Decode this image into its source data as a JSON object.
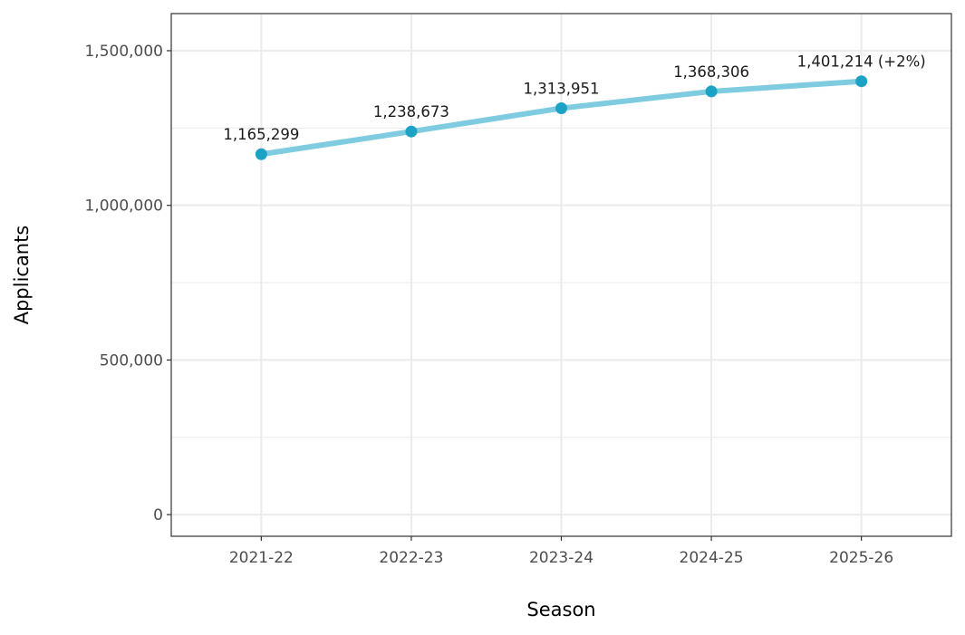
{
  "chart_data": {
    "type": "line",
    "title": "",
    "xlabel": "Season",
    "ylabel": "Applicants",
    "categories": [
      "2021-22",
      "2022-23",
      "2023-24",
      "2024-25",
      "2025-26"
    ],
    "series": [
      {
        "values": [
          1165299,
          1238673,
          1313951,
          1368306,
          1401214
        ],
        "labels": [
          "1,165,299",
          "1,238,673",
          "1,313,951",
          "1,368,306",
          "1,401,214 (+2%)"
        ]
      }
    ],
    "ylim": [
      -70000,
      1620000
    ],
    "yticks": [
      0,
      500000,
      1000000,
      1500000
    ],
    "ytick_labels": [
      "0",
      "500,000",
      "1,000,000",
      "1,500,000"
    ],
    "grid": true,
    "legend": "none",
    "colors": {
      "line": "#7fcce0",
      "point": "#1ba3c6",
      "grid": "#ebebeb",
      "panel_border": "#333333",
      "tick_mark": "#333333"
    }
  }
}
